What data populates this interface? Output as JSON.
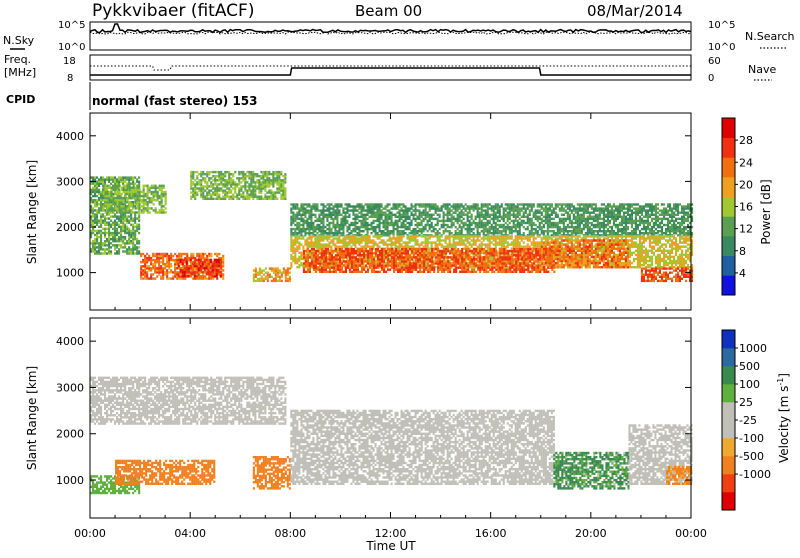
{
  "header": {
    "site": "Pykkvibaer (fitACF)",
    "beam": "Beam 00",
    "date": "08/Mar/2014"
  },
  "status_panels": {
    "nsky_label": "N.Sky",
    "nsky_ticks": [
      "10^5",
      "10^0"
    ],
    "nsearch_label": "N.Search",
    "nsearch_ticks": [
      "10^5",
      "10^0"
    ],
    "freq_label_1": "Freq.",
    "freq_label_2": "[MHz]",
    "freq_ticks": [
      "18",
      "8"
    ],
    "nave_label": "Nave",
    "nave_ticks": [
      "60",
      "0"
    ],
    "cpid_label": "CPID",
    "cpid_text": "normal (fast stereo) 153"
  },
  "colors": {
    "power": [
      "#1010e0",
      "#2060a0",
      "#3a8a60",
      "#5aa050",
      "#a0c830",
      "#f0a020",
      "#f07010",
      "#f03010",
      "#e00000"
    ],
    "velocity": [
      "#e00000",
      "#f04010",
      "#f08020",
      "#f0a830",
      "#c0c0b8",
      "#c0c0b8",
      "#60b040",
      "#3a8a50",
      "#2a6aa0",
      "#1030c0"
    ]
  },
  "chart_data": [
    {
      "type": "heatmap",
      "name": "power",
      "title": "",
      "xlabel": "",
      "ylabel": "Slant Range [km]",
      "xlim": [
        "00:00",
        "24:00"
      ],
      "ylim": [
        180,
        4500
      ],
      "yticks": [
        "1000",
        "2000",
        "3000",
        "4000"
      ],
      "colorbar_label": "Power [dB]",
      "colorbar_ticks": [
        "4",
        "8",
        "12",
        "16",
        "20",
        "24",
        "28"
      ],
      "colorbar_range": [
        0,
        32
      ],
      "regions": [
        {
          "time": [
            0.0,
            2.0
          ],
          "range": [
            1400,
            3100
          ],
          "level": 12
        },
        {
          "time": [
            0.5,
            3.0
          ],
          "range": [
            2300,
            2900
          ],
          "level": 14
        },
        {
          "time": [
            2.0,
            5.3
          ],
          "range": [
            850,
            1400
          ],
          "level": 24
        },
        {
          "time": [
            3.5,
            5.2
          ],
          "range": [
            900,
            1300
          ],
          "level": 28
        },
        {
          "time": [
            4.0,
            7.8
          ],
          "range": [
            2600,
            3200
          ],
          "level": 14
        },
        {
          "time": [
            6.5,
            8.0
          ],
          "range": [
            800,
            1100
          ],
          "level": 20
        },
        {
          "time": [
            8.0,
            24.0
          ],
          "range": [
            1800,
            2500
          ],
          "level": 10
        },
        {
          "time": [
            8.0,
            24.0
          ],
          "range": [
            1100,
            1800
          ],
          "level": 18
        },
        {
          "time": [
            8.5,
            18.5
          ],
          "range": [
            1000,
            1500
          ],
          "level": 26
        },
        {
          "time": [
            18.0,
            21.5
          ],
          "range": [
            1100,
            1700
          ],
          "level": 24
        },
        {
          "time": [
            22.0,
            24.0
          ],
          "range": [
            800,
            1100
          ],
          "level": 26
        }
      ]
    },
    {
      "type": "heatmap",
      "name": "velocity",
      "title": "",
      "xlabel": "Time UT",
      "ylabel": "Slant Range [km]",
      "xlim": [
        "00:00",
        "24:00"
      ],
      "ylim": [
        180,
        4500
      ],
      "xticks": [
        "00:00",
        "04:00",
        "08:00",
        "12:00",
        "16:00",
        "20:00",
        "00:00"
      ],
      "yticks": [
        "1000",
        "2000",
        "3000",
        "4000"
      ],
      "colorbar_label": "Velocity [m s^-1]",
      "colorbar_ticks": [
        "1000",
        "500",
        "100",
        "25",
        "-25",
        "-100",
        "-500",
        "-1000"
      ],
      "regions": [
        {
          "time": [
            0.0,
            7.8
          ],
          "range": [
            2200,
            3200
          ],
          "velocity": 0
        },
        {
          "time": [
            0.0,
            2.0
          ],
          "range": [
            700,
            1100
          ],
          "velocity": 50
        },
        {
          "time": [
            1.0,
            5.0
          ],
          "range": [
            900,
            1400
          ],
          "velocity": -300
        },
        {
          "time": [
            6.5,
            8.0
          ],
          "range": [
            800,
            1500
          ],
          "velocity": -300
        },
        {
          "time": [
            8.0,
            18.5
          ],
          "range": [
            900,
            2500
          ],
          "velocity": 0
        },
        {
          "time": [
            18.5,
            21.5
          ],
          "range": [
            800,
            1600
          ],
          "velocity": 150
        },
        {
          "time": [
            21.5,
            24.0
          ],
          "range": [
            900,
            2200
          ],
          "velocity": 0
        },
        {
          "time": [
            23.0,
            24.0
          ],
          "range": [
            900,
            1300
          ],
          "velocity": -200
        }
      ]
    }
  ]
}
